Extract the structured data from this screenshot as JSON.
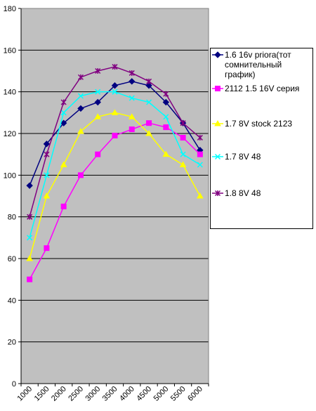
{
  "chart_data": {
    "type": "line",
    "x": [
      1250,
      1750,
      2250,
      2750,
      3250,
      3750,
      4250,
      4750,
      5250,
      5750,
      6250
    ],
    "x_tick_labels": [
      "1000",
      "1500",
      "2000",
      "2500",
      "3000",
      "3500",
      "4000",
      "4500",
      "5000",
      "5500",
      "6000"
    ],
    "ylim": [
      0,
      180
    ],
    "y_ticks": [
      0,
      20,
      40,
      60,
      80,
      100,
      120,
      140,
      160,
      180
    ],
    "grid": true,
    "legend_position": "right",
    "plot_background": "#c0c0c0",
    "series": [
      {
        "name": "1.6 16v priora(тот сомнительный график)",
        "color": "#000080",
        "marker": "diamond",
        "values": [
          95,
          115,
          125,
          132,
          135,
          143,
          145,
          143,
          135,
          125,
          112
        ]
      },
      {
        "name": "2112 1.5 16V серия",
        "color": "#ff00ff",
        "marker": "square",
        "values": [
          50,
          65,
          85,
          100,
          110,
          119,
          122,
          125,
          123,
          118,
          110
        ]
      },
      {
        "name": "1.7 8V stock 2123",
        "color": "#ffff00",
        "marker": "triangle",
        "values": [
          60,
          90,
          105,
          121,
          128,
          130,
          128,
          120,
          110,
          105,
          90
        ]
      },
      {
        "name": "1.7 8V 48",
        "color": "#00ffff",
        "marker": "x",
        "values": [
          70,
          100,
          130,
          138,
          140,
          140,
          137,
          135,
          128,
          110,
          105
        ]
      },
      {
        "name": "1.8 8V 48",
        "color": "#800080",
        "marker": "star",
        "values": [
          80,
          110,
          135,
          147,
          150,
          152,
          149,
          145,
          139,
          125,
          118
        ]
      }
    ]
  }
}
